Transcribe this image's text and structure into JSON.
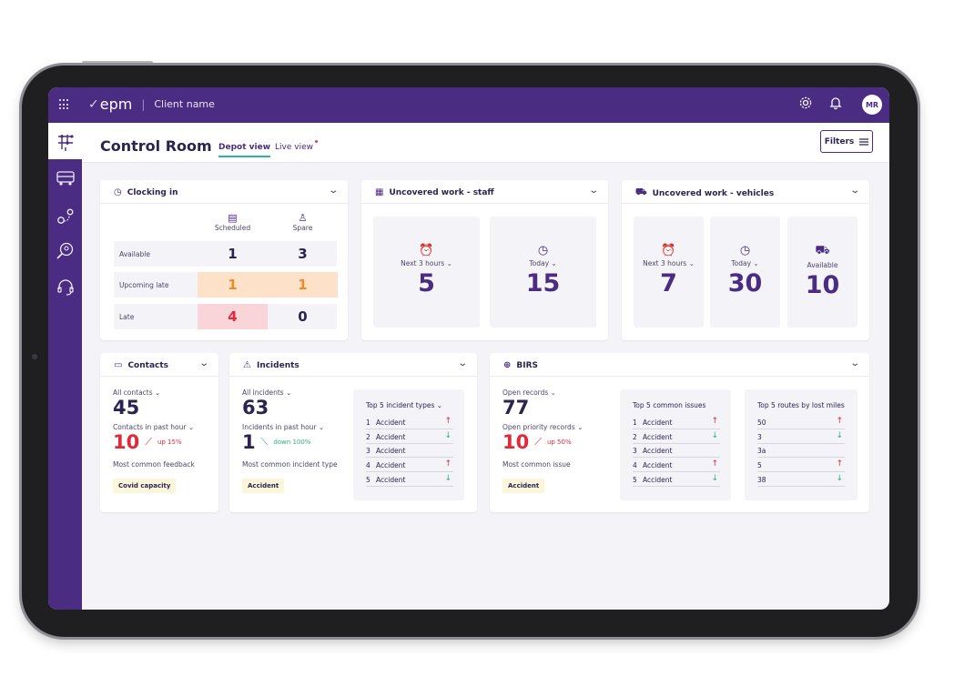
{
  "app": {
    "logo": "epm",
    "client": "Client name",
    "avatar_initials": "MR"
  },
  "icons": {
    "apps": "grid-icon",
    "settings": "gear-icon",
    "notifications": "bell-icon"
  },
  "sidebar": {
    "items": [
      {
        "icon": "control-room-icon"
      },
      {
        "icon": "bus-icon"
      },
      {
        "icon": "route-pin-icon"
      },
      {
        "icon": "search-users-icon"
      },
      {
        "icon": "headset-icon"
      }
    ]
  },
  "header": {
    "title": "Control Room",
    "tabs": [
      {
        "label": "Depot view",
        "active": true
      },
      {
        "label": "Live view",
        "active": false
      }
    ],
    "filters_label": "Filters"
  },
  "clocking": {
    "title": "Clocking in",
    "columns": [
      "Scheduled",
      "Spare"
    ],
    "rows": [
      {
        "label": "Available",
        "scheduled": "1",
        "spare": "3",
        "status": "normal"
      },
      {
        "label": "Upcoming late",
        "scheduled": "1",
        "spare": "1",
        "status": "warning"
      },
      {
        "label": "Late",
        "scheduled": "4",
        "spare": "0",
        "status": "late"
      }
    ]
  },
  "uncovered_staff": {
    "title": "Uncovered work - staff",
    "tiles": [
      {
        "label": "Next 3 hours",
        "value": "5"
      },
      {
        "label": "Today",
        "value": "15"
      }
    ]
  },
  "uncovered_vehicles": {
    "title": "Uncovered work - vehicles",
    "tiles": [
      {
        "label": "Next 3 hours",
        "value": "7"
      },
      {
        "label": "Today",
        "value": "30"
      },
      {
        "label": "Available",
        "value": "10"
      }
    ]
  },
  "contacts": {
    "title": "Contacts",
    "all_label": "All contacts",
    "all_value": "45",
    "past_label": "Contacts in past hour",
    "past_value": "10",
    "trend": "up 15%",
    "feedback_label": "Most common feedback",
    "feedback_value": "Covid capacity"
  },
  "incidents": {
    "title": "Incidents",
    "all_label": "All incidents",
    "all_value": "63",
    "past_label": "Incidents in past hour",
    "past_value": "1",
    "trend": "down 100%",
    "type_label": "Most common incident type",
    "type_value": "Accident",
    "top_title": "Top 5 incident types",
    "top": [
      {
        "n": "1",
        "text": "Accident",
        "dir": "up"
      },
      {
        "n": "2",
        "text": "Accident",
        "dir": "down"
      },
      {
        "n": "3",
        "text": "Accident",
        "dir": ""
      },
      {
        "n": "4",
        "text": "Accident",
        "dir": "up"
      },
      {
        "n": "5",
        "text": "Accident",
        "dir": "down"
      }
    ]
  },
  "birs": {
    "title": "BIRS",
    "open_label": "Open records",
    "open_value": "77",
    "priority_label": "Open priority records",
    "priority_value": "10",
    "trend": "up 50%",
    "issue_label": "Most common issue",
    "issue_value": "Accident",
    "issues_title": "Top 5 common issues",
    "issues": [
      {
        "n": "1",
        "text": "Accident",
        "dir": "up"
      },
      {
        "n": "2",
        "text": "Accident",
        "dir": "down"
      },
      {
        "n": "3",
        "text": "Accident",
        "dir": ""
      },
      {
        "n": "4",
        "text": "Accident",
        "dir": "up"
      },
      {
        "n": "5",
        "text": "Accident",
        "dir": "down"
      }
    ],
    "routes_title": "Top 5 routes by lost miles",
    "routes": [
      {
        "text": "50",
        "dir": "up"
      },
      {
        "text": "3",
        "dir": "down"
      },
      {
        "text": "3a",
        "dir": ""
      },
      {
        "text": "5",
        "dir": "up"
      },
      {
        "text": "38",
        "dir": "down"
      }
    ]
  },
  "colors": {
    "primary": "#4a2c82",
    "accent": "#27b3a0",
    "alert": "#e0293a",
    "warning": "#f08a24",
    "positive": "#2fb079"
  }
}
